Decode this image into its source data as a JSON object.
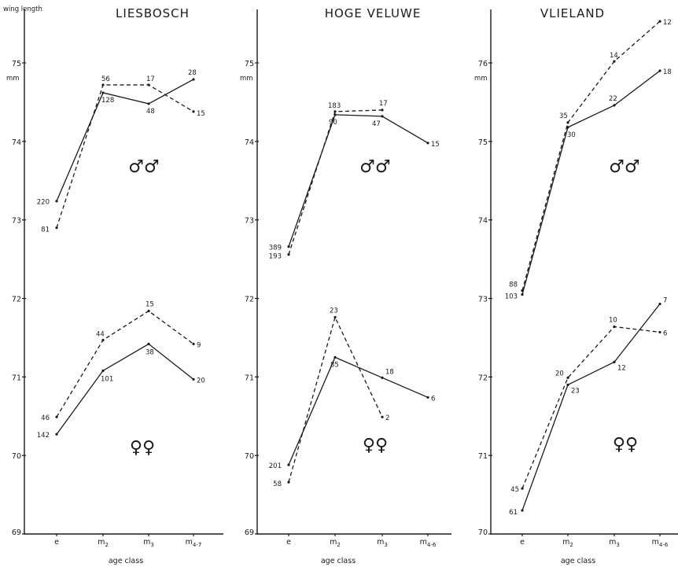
{
  "figure": {
    "ylabel": "wing length",
    "unit": "mm",
    "xlabel": "age class",
    "male_symbol": "♂♂",
    "female_symbol": "♀♀"
  },
  "chart_data": [
    {
      "type": "line",
      "title": "LIESBOSCH",
      "xlabel": "age class",
      "ylabel": "wing length",
      "categories": [
        {
          "main": "e",
          "sub": ""
        },
        {
          "main": "m",
          "sub": "2"
        },
        {
          "main": "m",
          "sub": "3"
        },
        {
          "main": "m",
          "sub": "4-7"
        }
      ],
      "ylim": [
        69,
        75.9
      ],
      "yticks": [
        {
          "v": 69,
          "label": "69"
        },
        {
          "v": 70,
          "label": "70"
        },
        {
          "v": 71,
          "label": "71"
        },
        {
          "v": 72,
          "label": "72"
        },
        {
          "v": 73,
          "label": "73"
        },
        {
          "v": 74,
          "label": "74"
        },
        {
          "v": 75,
          "label": "75"
        }
      ],
      "series": [
        {
          "group": "males",
          "style": "dashed",
          "values": [
            72.9,
            74.72,
            74.72,
            74.38
          ],
          "labels": [
            "81",
            "56",
            "17",
            "15"
          ]
        },
        {
          "group": "males",
          "style": "solid",
          "values": [
            73.24,
            74.62,
            74.48,
            74.79
          ],
          "labels": [
            "220",
            "128",
            "48",
            "28"
          ]
        },
        {
          "group": "females",
          "style": "dashed",
          "values": [
            70.49,
            71.47,
            71.84,
            71.42
          ],
          "labels": [
            "46",
            "44",
            "15",
            "9"
          ]
        },
        {
          "group": "females",
          "style": "solid",
          "values": [
            70.27,
            71.08,
            71.42,
            70.97
          ],
          "labels": [
            "142",
            "101",
            "38",
            "20"
          ]
        }
      ]
    },
    {
      "type": "line",
      "title": "HOGE VELUWE",
      "xlabel": "age class",
      "ylabel": "wing length",
      "categories": [
        {
          "main": "e",
          "sub": ""
        },
        {
          "main": "m",
          "sub": "2"
        },
        {
          "main": "m",
          "sub": "3"
        },
        {
          "main": "m",
          "sub": "4-6"
        }
      ],
      "ylim": [
        69,
        75.9
      ],
      "yticks": [
        {
          "v": 69,
          "label": "69"
        },
        {
          "v": 70,
          "label": "70"
        },
        {
          "v": 71,
          "label": "71"
        },
        {
          "v": 72,
          "label": "72"
        },
        {
          "v": 73,
          "label": "73"
        },
        {
          "v": 74,
          "label": "74"
        },
        {
          "v": 75,
          "label": "75"
        }
      ],
      "series": [
        {
          "group": "males",
          "style": "dashed",
          "values": [
            72.56,
            74.38,
            74.4,
            null
          ],
          "labels": [
            "193",
            "183",
            "17",
            ""
          ]
        },
        {
          "group": "males",
          "style": "solid",
          "values": [
            72.66,
            74.34,
            74.32,
            73.98
          ],
          "labels": [
            "389",
            "90",
            "47",
            "15"
          ]
        },
        {
          "group": "females",
          "style": "dashed",
          "values": [
            69.66,
            71.76,
            70.49,
            null
          ],
          "labels": [
            "58",
            "23",
            "2",
            ""
          ]
        },
        {
          "group": "females",
          "style": "solid",
          "values": [
            69.88,
            71.25,
            70.99,
            70.74
          ],
          "labels": [
            "201",
            "85",
            "18",
            "6"
          ]
        }
      ]
    },
    {
      "type": "line",
      "title": "VLIELAND",
      "xlabel": "age class",
      "ylabel": "wing length",
      "categories": [
        {
          "main": "e",
          "sub": ""
        },
        {
          "main": "m",
          "sub": "2"
        },
        {
          "main": "m",
          "sub": "3"
        },
        {
          "main": "m",
          "sub": "4-6"
        }
      ],
      "ylim": [
        70,
        76.6
      ],
      "yticks": [
        {
          "v": 70,
          "label": "70"
        },
        {
          "v": 71,
          "label": "71"
        },
        {
          "v": 72,
          "label": "72"
        },
        {
          "v": 73,
          "label": "73"
        },
        {
          "v": 74,
          "label": "74"
        },
        {
          "v": 75,
          "label": "75"
        },
        {
          "v": 76,
          "label": "76"
        }
      ],
      "series": [
        {
          "group": "males",
          "style": "dashed",
          "values": [
            73.1,
            75.24,
            76.02,
            76.53
          ],
          "labels": [
            "88",
            "35",
            "14",
            "12"
          ]
        },
        {
          "group": "males",
          "style": "solid",
          "values": [
            73.05,
            75.18,
            75.46,
            75.9
          ],
          "labels": [
            "103",
            "30",
            "22",
            "18"
          ]
        },
        {
          "group": "females",
          "style": "dashed",
          "values": [
            70.58,
            71.99,
            72.64,
            72.57
          ],
          "labels": [
            "45",
            "20",
            "10",
            "6"
          ]
        },
        {
          "group": "females",
          "style": "solid",
          "values": [
            70.3,
            71.9,
            72.19,
            72.93
          ],
          "labels": [
            "61",
            "23",
            "12",
            "7"
          ]
        }
      ]
    }
  ]
}
